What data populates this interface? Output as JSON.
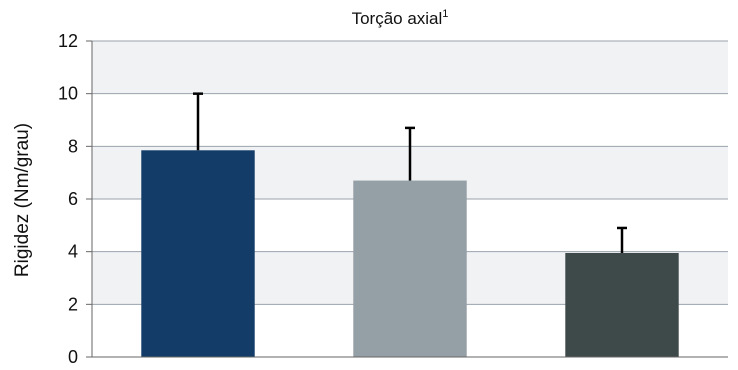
{
  "chart_data": {
    "type": "bar",
    "title": "Torção axial",
    "title_superscript": "1",
    "xlabel": "",
    "ylabel": "Rigidez (Nm/grau)",
    "ylim": [
      0,
      12
    ],
    "yticks": [
      0,
      2,
      4,
      6,
      8,
      10,
      12
    ],
    "yticks_labels": [
      "0",
      "2",
      "4",
      "6",
      "8",
      "10",
      "12"
    ],
    "grid": true,
    "legend": "none",
    "categories": [
      "",
      "",
      ""
    ],
    "values": [
      7.85,
      6.7,
      3.95
    ],
    "error_upper": [
      10.0,
      8.7,
      4.9
    ],
    "colors": [
      "#133d68",
      "#959fa6",
      "#3e4a4a"
    ],
    "band_colors": [
      "#f1f2f4",
      "#ffffff"
    ],
    "gridline_color": "#9aa3ad",
    "error_bar_color": "#000000"
  }
}
